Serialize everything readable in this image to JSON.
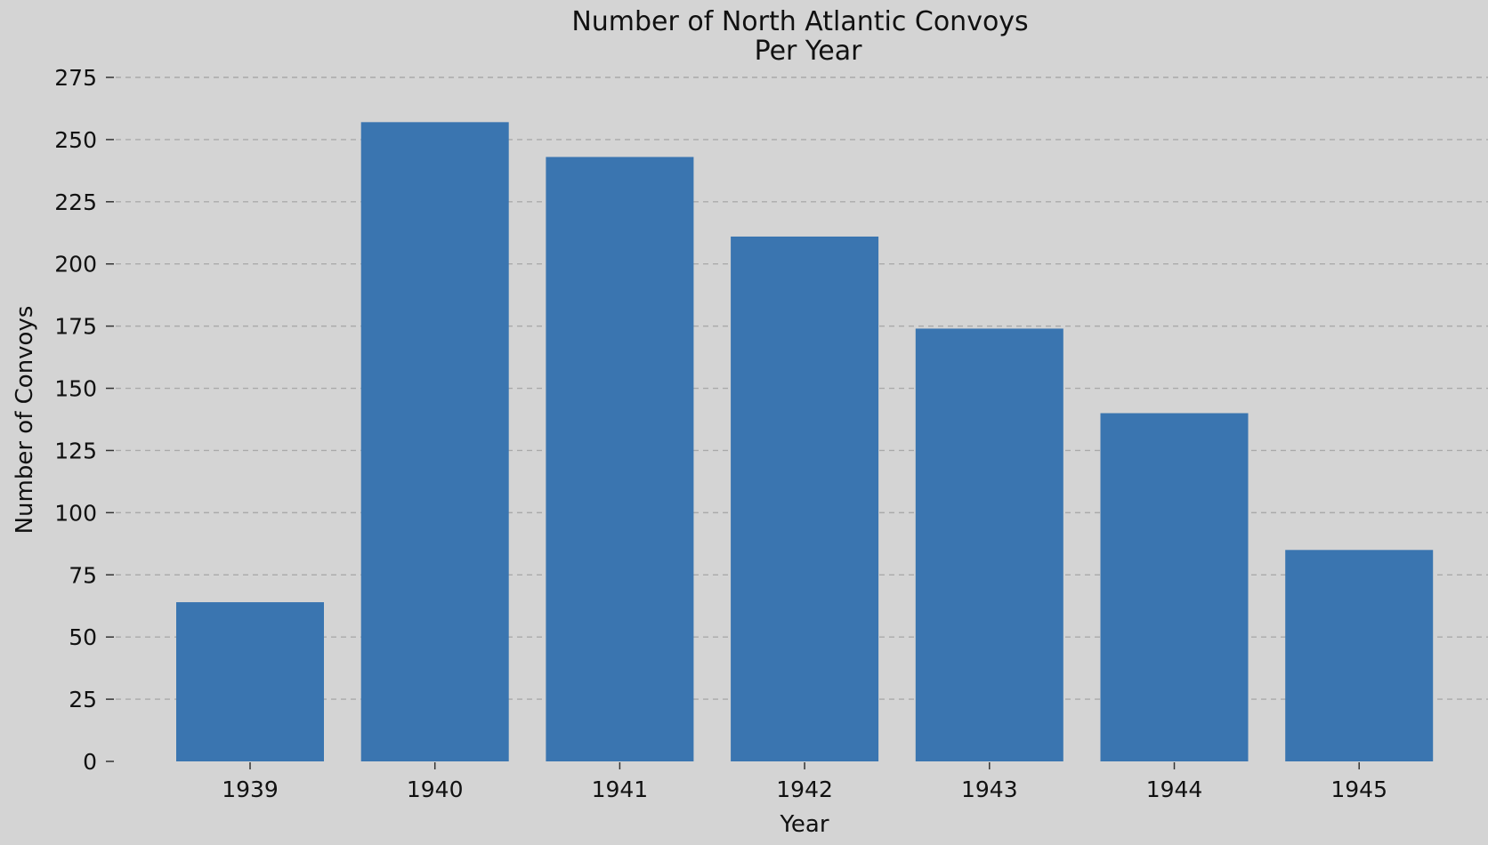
{
  "chart_data": {
    "type": "bar",
    "title": "Number of North Atlantic Convoys\nPer Year",
    "title_lines": [
      "Number of North Atlantic Convoys",
      "Per Year"
    ],
    "xlabel": "Year",
    "ylabel": "Number of Convoys",
    "categories": [
      "1939",
      "1940",
      "1941",
      "1942",
      "1943",
      "1944",
      "1945"
    ],
    "values": [
      64,
      257,
      243,
      211,
      174,
      140,
      85
    ],
    "ylim": [
      0,
      275
    ],
    "yticks": [
      0,
      25,
      50,
      75,
      100,
      125,
      150,
      175,
      200,
      225,
      250,
      275
    ],
    "grid": "y-dashed",
    "legend": "none",
    "bar_color": "#3a75b0",
    "background_color": "#d4d4d4"
  }
}
